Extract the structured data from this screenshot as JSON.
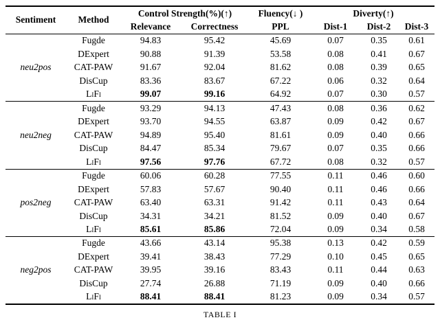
{
  "caption": "TABLE I",
  "table": {
    "header": {
      "sentiment": "Sentiment",
      "method": "Method",
      "control_strength": "Control Strength(%)(↑)",
      "relevance": "Relevance",
      "correctness": "Correctness",
      "fluency": "Fluency(↓ )",
      "ppl": "PPL",
      "diverty": "Diverty(↑)",
      "dist1": "Dist-1",
      "dist2": "Dist-2",
      "dist3": "Dist-3"
    },
    "groups": [
      {
        "sentiment": "neu2pos",
        "rows": [
          {
            "method": "Fugde",
            "relevance": "94.83",
            "correctness": "95.42",
            "ppl": "45.69",
            "dist1": "0.07",
            "dist2": "0.35",
            "dist3": "0.61",
            "bold": false
          },
          {
            "method": "DExpert",
            "relevance": "90.88",
            "correctness": "91.39",
            "ppl": "53.58",
            "dist1": "0.08",
            "dist2": "0.41",
            "dist3": "0.67",
            "bold": false
          },
          {
            "method": "CAT-PAW",
            "relevance": "91.67",
            "correctness": "92.04",
            "ppl": "81.62",
            "dist1": "0.08",
            "dist2": "0.39",
            "dist3": "0.65",
            "bold": false
          },
          {
            "method": "DisCup",
            "relevance": "83.36",
            "correctness": "83.67",
            "ppl": "67.22",
            "dist1": "0.06",
            "dist2": "0.32",
            "dist3": "0.64",
            "bold": false
          },
          {
            "method": "LiFi",
            "relevance": "99.07",
            "correctness": "99.16",
            "ppl": "64.92",
            "dist1": "0.07",
            "dist2": "0.30",
            "dist3": "0.57",
            "bold": true
          }
        ]
      },
      {
        "sentiment": "neu2neg",
        "rows": [
          {
            "method": "Fugde",
            "relevance": "93.29",
            "correctness": "94.13",
            "ppl": "47.43",
            "dist1": "0.08",
            "dist2": "0.36",
            "dist3": "0.62",
            "bold": false
          },
          {
            "method": "DExpert",
            "relevance": "93.70",
            "correctness": "94.55",
            "ppl": "63.87",
            "dist1": "0.09",
            "dist2": "0.42",
            "dist3": "0.67",
            "bold": false
          },
          {
            "method": "CAT-PAW",
            "relevance": "94.89",
            "correctness": "95.40",
            "ppl": "81.61",
            "dist1": "0.09",
            "dist2": "0.40",
            "dist3": "0.66",
            "bold": false
          },
          {
            "method": "DisCup",
            "relevance": "84.47",
            "correctness": "85.34",
            "ppl": "79.67",
            "dist1": "0.07",
            "dist2": "0.35",
            "dist3": "0.66",
            "bold": false
          },
          {
            "method": "LiFi",
            "relevance": "97.56",
            "correctness": "97.76",
            "ppl": "67.72",
            "dist1": "0.08",
            "dist2": "0.32",
            "dist3": "0.57",
            "bold": true
          }
        ]
      },
      {
        "sentiment": "pos2neg",
        "rows": [
          {
            "method": "Fugde",
            "relevance": "60.06",
            "correctness": "60.28",
            "ppl": "77.55",
            "dist1": "0.11",
            "dist2": "0.46",
            "dist3": "0.60",
            "bold": false
          },
          {
            "method": "DExpert",
            "relevance": "57.83",
            "correctness": "57.67",
            "ppl": "90.40",
            "dist1": "0.11",
            "dist2": "0.46",
            "dist3": "0.66",
            "bold": false
          },
          {
            "method": "CAT-PAW",
            "relevance": "63.40",
            "correctness": "63.31",
            "ppl": "91.42",
            "dist1": "0.11",
            "dist2": "0.43",
            "dist3": "0.64",
            "bold": false
          },
          {
            "method": "DisCup",
            "relevance": "34.31",
            "correctness": "34.21",
            "ppl": "81.52",
            "dist1": "0.09",
            "dist2": "0.40",
            "dist3": "0.67",
            "bold": false
          },
          {
            "method": "LiFi",
            "relevance": "85.61",
            "correctness": "85.86",
            "ppl": "72.04",
            "dist1": "0.09",
            "dist2": "0.34",
            "dist3": "0.58",
            "bold": true
          }
        ]
      },
      {
        "sentiment": "neg2pos",
        "rows": [
          {
            "method": "Fugde",
            "relevance": "43.66",
            "correctness": "43.14",
            "ppl": "95.38",
            "dist1": "0.13",
            "dist2": "0.42",
            "dist3": "0.59",
            "bold": false
          },
          {
            "method": "DExpert",
            "relevance": "39.41",
            "correctness": "38.43",
            "ppl": "77.29",
            "dist1": "0.10",
            "dist2": "0.45",
            "dist3": "0.65",
            "bold": false
          },
          {
            "method": "CAT-PAW",
            "relevance": "39.95",
            "correctness": "39.16",
            "ppl": "83.43",
            "dist1": "0.11",
            "dist2": "0.44",
            "dist3": "0.63",
            "bold": false
          },
          {
            "method": "DisCup",
            "relevance": "27.74",
            "correctness": "26.88",
            "ppl": "71.19",
            "dist1": "0.09",
            "dist2": "0.40",
            "dist3": "0.66",
            "bold": false
          },
          {
            "method": "LiFi",
            "relevance": "88.41",
            "correctness": "88.41",
            "ppl": "81.23",
            "dist1": "0.09",
            "dist2": "0.34",
            "dist3": "0.57",
            "bold": true
          }
        ]
      }
    ]
  }
}
